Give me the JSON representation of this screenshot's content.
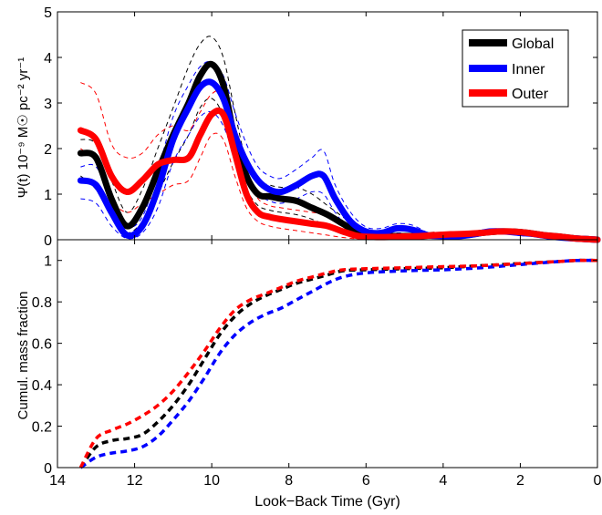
{
  "chart_data": [
    {
      "type": "line",
      "panel": "top",
      "ylabel": "Ψ(t) 10⁻⁹ M☉ pc⁻² yr⁻¹",
      "xlim": [
        14,
        0
      ],
      "ylim": [
        0,
        5
      ],
      "yticks": [
        "0",
        "1",
        "2",
        "3",
        "4",
        "5"
      ],
      "legend_placement": "top-right",
      "legend": [
        {
          "label": "Global",
          "color": "#000000"
        },
        {
          "label": "Inner",
          "color": "#0000ff"
        },
        {
          "label": "Outer",
          "color": "#ff0000"
        }
      ],
      "series": [
        {
          "name": "Global",
          "color": "#000000",
          "x": [
            13.4,
            13.0,
            12.6,
            12.2,
            11.8,
            11.4,
            11.0,
            10.6,
            10.3,
            10.0,
            9.7,
            9.4,
            9.1,
            8.8,
            8.5,
            8.2,
            7.8,
            7.4,
            7.0,
            6.6,
            6.2,
            5.8,
            5.4,
            5.0,
            4.6,
            4.2,
            3.8,
            3.4,
            3.0,
            2.6,
            2.2,
            1.8,
            1.4,
            1.0,
            0.6,
            0.2,
            0.0
          ],
          "y": [
            1.9,
            1.8,
            0.9,
            0.3,
            0.7,
            1.5,
            2.3,
            3.0,
            3.6,
            3.85,
            3.4,
            2.2,
            1.4,
            1.0,
            0.95,
            0.9,
            0.85,
            0.7,
            0.55,
            0.35,
            0.15,
            0.08,
            0.08,
            0.08,
            0.08,
            0.1,
            0.1,
            0.1,
            0.15,
            0.18,
            0.18,
            0.15,
            0.1,
            0.07,
            0.03,
            0.01,
            0.0
          ]
        },
        {
          "name": "Inner",
          "color": "#0000ff",
          "x": [
            13.4,
            13.0,
            12.6,
            12.2,
            11.8,
            11.4,
            11.0,
            10.6,
            10.3,
            10.0,
            9.7,
            9.4,
            9.1,
            8.8,
            8.5,
            8.2,
            7.8,
            7.4,
            7.1,
            6.8,
            6.4,
            6.0,
            5.6,
            5.2,
            4.8,
            4.4,
            4.0,
            3.6,
            3.2,
            2.8,
            2.4,
            2.0,
            1.6,
            1.2,
            0.8,
            0.4,
            0.0
          ],
          "y": [
            1.3,
            1.2,
            0.6,
            0.1,
            0.3,
            1.1,
            2.2,
            2.9,
            3.35,
            3.45,
            3.1,
            2.3,
            1.7,
            1.3,
            1.1,
            1.05,
            1.2,
            1.4,
            1.4,
            0.9,
            0.4,
            0.18,
            0.15,
            0.25,
            0.22,
            0.1,
            0.08,
            0.08,
            0.12,
            0.18,
            0.18,
            0.15,
            0.12,
            0.07,
            0.04,
            0.02,
            0.0
          ]
        },
        {
          "name": "Outer",
          "color": "#ff0000",
          "x": [
            13.4,
            13.0,
            12.6,
            12.2,
            11.8,
            11.4,
            11.0,
            10.6,
            10.3,
            10.0,
            9.7,
            9.4,
            9.1,
            8.8,
            8.5,
            8.2,
            7.8,
            7.4,
            7.0,
            6.6,
            6.2,
            5.8,
            5.4,
            5.0,
            4.6,
            4.2,
            3.8,
            3.4,
            3.0,
            2.6,
            2.2,
            1.8,
            1.4,
            1.0,
            0.6,
            0.2,
            0.0
          ],
          "y": [
            2.4,
            2.2,
            1.4,
            1.05,
            1.3,
            1.65,
            1.75,
            1.8,
            2.3,
            2.75,
            2.75,
            1.9,
            1.0,
            0.6,
            0.5,
            0.45,
            0.4,
            0.35,
            0.3,
            0.18,
            0.08,
            0.06,
            0.06,
            0.07,
            0.08,
            0.1,
            0.12,
            0.13,
            0.15,
            0.18,
            0.18,
            0.15,
            0.1,
            0.07,
            0.03,
            0.01,
            0.0
          ]
        }
      ],
      "uncertainty_bands": [
        {
          "series": "Global",
          "color": "#000000",
          "x": [
            13.4,
            13.0,
            12.6,
            12.2,
            11.8,
            11.4,
            11.0,
            10.6,
            10.3,
            10.0,
            9.7,
            9.4,
            9.1,
            8.8,
            8.5,
            8.2,
            7.8,
            7.4,
            7.0,
            6.6,
            6.2,
            5.8,
            5.4,
            5.0,
            4.6,
            4.2
          ],
          "lower": [
            1.4,
            1.1,
            0.5,
            0.15,
            0.4,
            1.0,
            1.7,
            2.3,
            2.9,
            3.1,
            2.7,
            1.7,
            1.1,
            0.75,
            0.65,
            0.6,
            0.55,
            0.45,
            0.3,
            0.18,
            0.06,
            0.03,
            0.03,
            0.03,
            0.03,
            0.05
          ],
          "upper": [
            2.2,
            2.1,
            1.3,
            0.6,
            1.1,
            2.0,
            2.9,
            3.8,
            4.3,
            4.45,
            4.0,
            2.8,
            1.7,
            1.3,
            1.2,
            1.15,
            1.15,
            1.0,
            0.75,
            0.5,
            0.25,
            0.15,
            0.13,
            0.14,
            0.13,
            0.14
          ]
        },
        {
          "series": "Inner",
          "color": "#0000ff",
          "x": [
            13.4,
            13.0,
            12.6,
            12.2,
            11.8,
            11.4,
            11.0,
            10.6,
            10.3,
            10.0,
            9.7,
            9.4,
            9.1,
            8.8,
            8.5,
            8.2,
            7.8,
            7.4,
            7.1,
            6.8,
            6.4,
            6.0,
            5.6,
            5.2,
            4.8,
            4.4
          ],
          "lower": [
            0.9,
            0.8,
            0.3,
            0.03,
            0.15,
            0.7,
            1.7,
            2.3,
            2.7,
            2.8,
            2.5,
            1.8,
            1.3,
            1.0,
            0.85,
            0.8,
            0.9,
            1.05,
            1.0,
            0.6,
            0.2,
            0.1,
            0.08,
            0.15,
            0.12,
            0.05
          ],
          "upper": [
            1.6,
            1.6,
            0.9,
            0.3,
            0.5,
            1.5,
            2.7,
            3.4,
            3.8,
            3.9,
            3.6,
            2.8,
            2.1,
            1.6,
            1.4,
            1.35,
            1.55,
            1.8,
            1.95,
            1.2,
            0.6,
            0.28,
            0.25,
            0.35,
            0.32,
            0.15
          ]
        },
        {
          "series": "Outer",
          "color": "#ff0000",
          "x": [
            13.4,
            13.0,
            12.6,
            12.2,
            11.8,
            11.4,
            11.0,
            10.6,
            10.3,
            10.0,
            9.7,
            9.4,
            9.1,
            8.8,
            8.5,
            8.2,
            7.8,
            7.4,
            7.0,
            6.6,
            6.2,
            5.8,
            5.4,
            5.0,
            4.6,
            4.2
          ],
          "lower": [
            2.0,
            1.7,
            0.9,
            0.6,
            0.8,
            1.0,
            1.2,
            1.3,
            1.8,
            2.3,
            2.2,
            1.4,
            0.7,
            0.4,
            0.3,
            0.25,
            0.2,
            0.15,
            0.1,
            0.05,
            0.02,
            0.02,
            0.02,
            0.03,
            0.03,
            0.05
          ],
          "upper": [
            3.45,
            3.2,
            2.1,
            1.8,
            1.9,
            2.3,
            2.5,
            2.4,
            2.8,
            3.2,
            3.2,
            2.4,
            1.4,
            0.9,
            0.75,
            0.7,
            0.65,
            0.6,
            0.55,
            0.35,
            0.18,
            0.13,
            0.12,
            0.13,
            0.14,
            0.17
          ]
        }
      ]
    },
    {
      "type": "line",
      "panel": "bottom",
      "xlabel": "Look−Back Time (Gyr)",
      "ylabel": "Cumul. mass fraction",
      "xlim": [
        14,
        0
      ],
      "ylim": [
        0,
        1.1
      ],
      "xticks": [
        "14",
        "12",
        "10",
        "8",
        "6",
        "4",
        "2",
        "0"
      ],
      "yticks": [
        "0",
        "0.2",
        "0.4",
        "0.6",
        "0.8",
        "1"
      ],
      "line_style": "dashed",
      "series": [
        {
          "name": "Global",
          "color": "#000000",
          "x": [
            13.4,
            13.0,
            12.6,
            12.2,
            11.8,
            11.4,
            11.0,
            10.6,
            10.2,
            9.8,
            9.4,
            9.0,
            8.6,
            8.2,
            7.8,
            7.4,
            7.0,
            6.6,
            6.0,
            5.0,
            4.0,
            3.0,
            2.0,
            1.0,
            0.5,
            0.0
          ],
          "y": [
            0.0,
            0.1,
            0.13,
            0.14,
            0.16,
            0.22,
            0.3,
            0.4,
            0.52,
            0.64,
            0.73,
            0.79,
            0.83,
            0.86,
            0.89,
            0.91,
            0.93,
            0.95,
            0.955,
            0.96,
            0.965,
            0.975,
            0.985,
            0.995,
            1.0,
            1.0
          ]
        },
        {
          "name": "Inner",
          "color": "#0000ff",
          "x": [
            13.4,
            13.0,
            12.6,
            12.2,
            11.8,
            11.4,
            11.0,
            10.6,
            10.2,
            9.8,
            9.4,
            9.0,
            8.6,
            8.2,
            7.8,
            7.4,
            7.0,
            6.6,
            6.0,
            5.0,
            4.0,
            3.0,
            2.0,
            1.0,
            0.5,
            0.0
          ],
          "y": [
            0.0,
            0.05,
            0.07,
            0.08,
            0.1,
            0.15,
            0.23,
            0.32,
            0.43,
            0.55,
            0.64,
            0.7,
            0.74,
            0.77,
            0.81,
            0.85,
            0.89,
            0.92,
            0.94,
            0.95,
            0.955,
            0.965,
            0.98,
            0.995,
            1.0,
            1.0
          ]
        },
        {
          "name": "Outer",
          "color": "#ff0000",
          "x": [
            13.4,
            13.0,
            12.6,
            12.2,
            11.8,
            11.4,
            11.0,
            10.6,
            10.2,
            9.8,
            9.4,
            9.0,
            8.6,
            8.2,
            7.8,
            7.4,
            7.0,
            6.6,
            6.0,
            5.0,
            4.0,
            3.0,
            2.0,
            1.0,
            0.5,
            0.0
          ],
          "y": [
            0.0,
            0.14,
            0.18,
            0.21,
            0.25,
            0.3,
            0.37,
            0.46,
            0.56,
            0.67,
            0.76,
            0.81,
            0.84,
            0.87,
            0.9,
            0.92,
            0.94,
            0.955,
            0.96,
            0.965,
            0.97,
            0.975,
            0.985,
            0.995,
            1.0,
            1.0
          ]
        }
      ]
    }
  ]
}
